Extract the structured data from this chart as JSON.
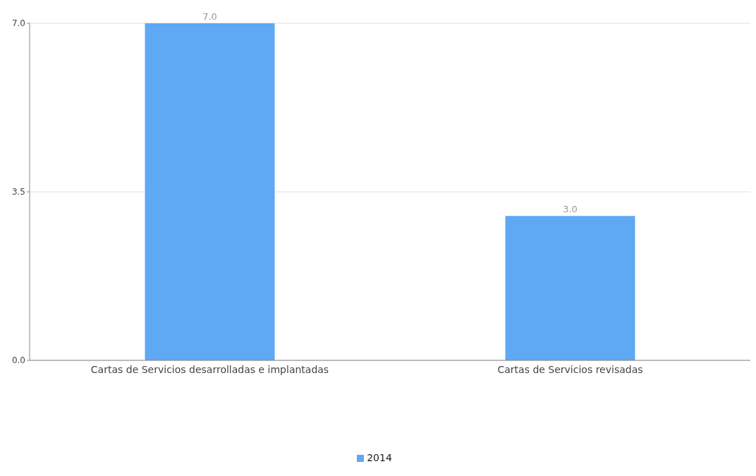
{
  "chart_data": {
    "type": "bar",
    "categories": [
      "Cartas de Servicios desarrolladas e implantadas",
      "Cartas de Servicios revisadas"
    ],
    "series": [
      {
        "name": "2014",
        "color": "#5fa8f3",
        "values": [
          7,
          3
        ],
        "value_labels": [
          "7.0",
          "3.0"
        ]
      }
    ],
    "ylim": [
      0,
      7
    ],
    "yticks": [
      {
        "value": 0,
        "label": "0.0"
      },
      {
        "value": 3.5,
        "label": "3.5"
      },
      {
        "value": 7,
        "label": "7.0"
      }
    ],
    "grid": "y",
    "legend": "bottom"
  }
}
